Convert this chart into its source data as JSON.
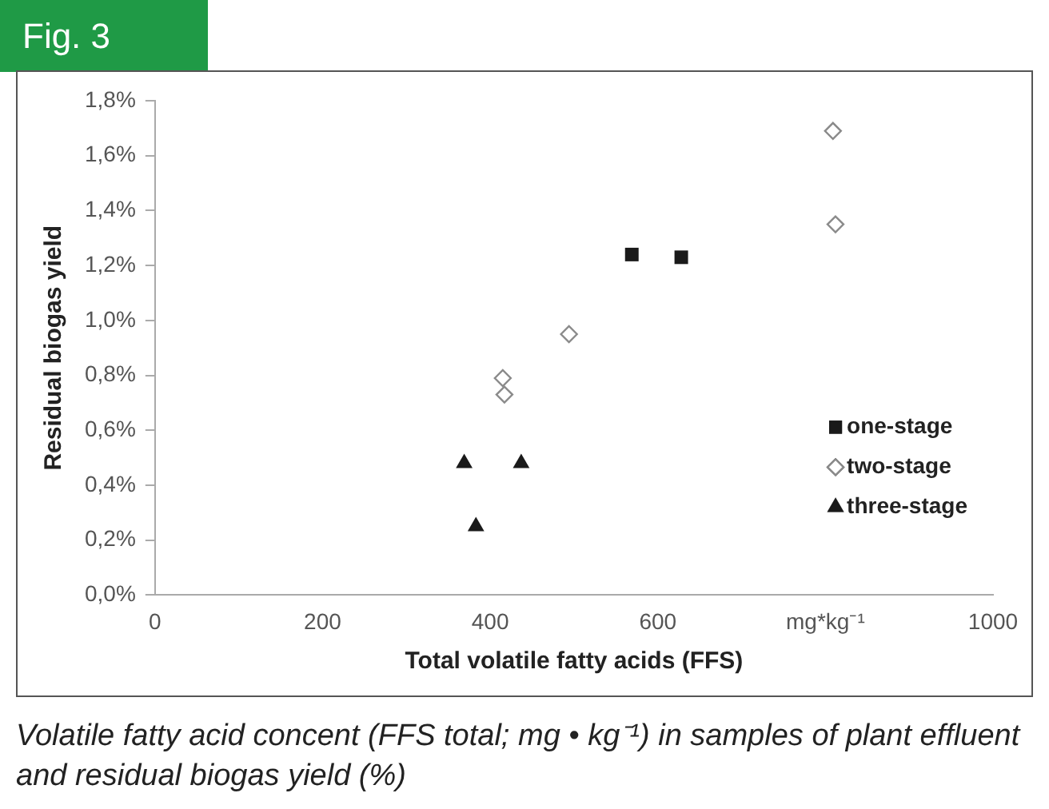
{
  "chart_data": {
    "type": "scatter",
    "title": "Fig. 3",
    "xlabel": "Total volatile fatty acids (FFS)",
    "ylabel": "Residual biogas yield",
    "xlim": [
      0,
      1000
    ],
    "xticks": [
      0,
      200,
      400,
      600,
      {
        "value": 800,
        "label": "mg*kg⁻¹"
      },
      1000
    ],
    "ylim": [
      0,
      1.8
    ],
    "yticks": [
      {
        "value": 0,
        "label": "0,0%"
      },
      {
        "value": 0.2,
        "label": "0,2%"
      },
      {
        "value": 0.4,
        "label": "0,4%"
      },
      {
        "value": 0.6,
        "label": "0,6%"
      },
      {
        "value": 0.8,
        "label": "0,8%"
      },
      {
        "value": 1.0,
        "label": "1,0%"
      },
      {
        "value": 1.2,
        "label": "1,2%"
      },
      {
        "value": 1.4,
        "label": "1,4%"
      },
      {
        "value": 1.6,
        "label": "1,6%"
      },
      {
        "value": 1.8,
        "label": "1,8%"
      }
    ],
    "grid": false,
    "legend": "right",
    "series": [
      {
        "name": "one-stage",
        "color": "#1a1a1a",
        "marker": "square",
        "x": [
          569,
          628
        ],
        "values": [
          1.24,
          1.23
        ]
      },
      {
        "name": "two-stage",
        "color": "#8a8a8a",
        "marker": "diamond",
        "x": [
          809,
          812,
          494,
          415,
          417
        ],
        "values": [
          1.69,
          1.35,
          0.95,
          0.79,
          0.73
        ]
      },
      {
        "name": "three-stage",
        "color": "#1a1a1a",
        "marker": "triangle",
        "x": [
          369,
          437,
          383
        ],
        "values": [
          0.48,
          0.48,
          0.25
        ]
      }
    ],
    "annotations": [
      "Volatile fatty acid concent (FFS total; mg • kg⁻¹) in samples of plant effluent and residual biogas yield (%)"
    ]
  }
}
